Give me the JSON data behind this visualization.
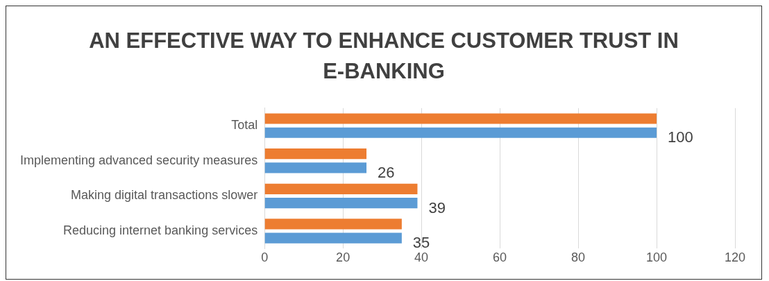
{
  "chart_data": {
    "type": "bar",
    "orientation": "horizontal",
    "title": "AN EFFECTIVE WAY TO ENHANCE CUSTOMER TRUST IN E-BANKING",
    "categories": [
      "Total",
      "Implementing advanced security measures",
      "Making digital transactions slower",
      "Reducing internet banking services"
    ],
    "series": [
      {
        "color": "#ed7d31",
        "values": [
          100,
          26,
          39,
          35
        ]
      },
      {
        "color": "#5b9bd5",
        "values": [
          100,
          26,
          39,
          35
        ],
        "value_labels": [
          "100",
          "26",
          "39",
          "35"
        ]
      }
    ],
    "xlim": [
      0,
      120
    ],
    "xticks": [
      0,
      20,
      40,
      60,
      80,
      100,
      120
    ],
    "grid": "x",
    "legend": false
  }
}
